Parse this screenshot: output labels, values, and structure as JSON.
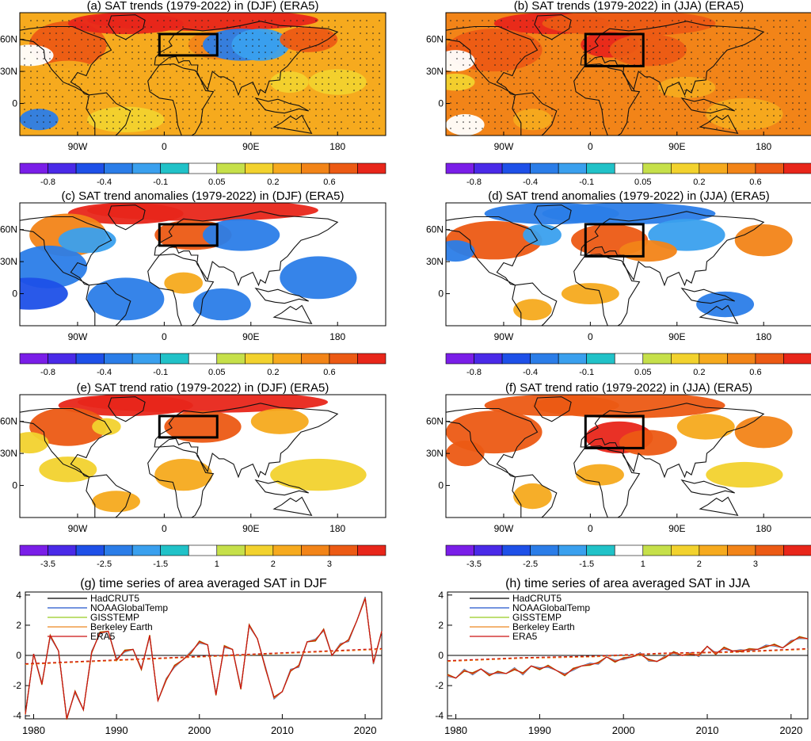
{
  "chart_data": [
    {
      "type": "heatmap",
      "id": "a",
      "title": "(a) SAT trends (1979-2022) in (DJF) (ERA5)",
      "region": "box 0-60E, 45-65N",
      "lon_ticks": [
        "90W",
        "0",
        "90E",
        "180"
      ],
      "lat_ticks": [
        "60N",
        "30N",
        "0"
      ],
      "colorbar_labels": [
        "-0.8",
        "-0.4",
        "-0.1",
        "0.05",
        "0.2",
        "0.6"
      ]
    },
    {
      "type": "heatmap",
      "id": "b",
      "title": "(b) SAT trends (1979-2022) in (JJA) (ERA5)",
      "region": "box 0-60E, 35-65N",
      "lon_ticks": [
        "90W",
        "0",
        "90E",
        "180"
      ],
      "lat_ticks": [
        "60N",
        "30N",
        "0"
      ],
      "colorbar_labels": [
        "-0.8",
        "-0.4",
        "-0.1",
        "0.05",
        "0.2",
        "0.6"
      ]
    },
    {
      "type": "heatmap",
      "id": "c",
      "title": "(c) SAT trend anomalies (1979-2022) in (DJF) (ERA5)",
      "lon_ticks": [
        "90W",
        "0",
        "90E",
        "180"
      ],
      "lat_ticks": [
        "60N",
        "30N",
        "0"
      ],
      "colorbar_labels": [
        "-0.8",
        "-0.4",
        "-0.1",
        "0.05",
        "0.2",
        "0.6"
      ]
    },
    {
      "type": "heatmap",
      "id": "d",
      "title": "(d) SAT trend anomalies (1979-2022) in (JJA) (ERA5)",
      "lon_ticks": [
        "90W",
        "0",
        "90E",
        "180"
      ],
      "lat_ticks": [
        "60N",
        "30N",
        "0"
      ],
      "colorbar_labels": [
        "-0.8",
        "-0.4",
        "-0.1",
        "0.05",
        "0.2",
        "0.6"
      ]
    },
    {
      "type": "heatmap",
      "id": "e",
      "title": "(e) SAT trend ratio (1979-2022) in (DJF) (ERA5)",
      "lon_ticks": [
        "90W",
        "0",
        "90E",
        "180"
      ],
      "lat_ticks": [
        "60N",
        "30N",
        "0"
      ],
      "colorbar_labels": [
        "-3.5",
        "-2.5",
        "-1.5",
        "1",
        "2",
        "3"
      ]
    },
    {
      "type": "heatmap",
      "id": "f",
      "title": "(f) SAT trend ratio (1979-2022) in (JJA) (ERA5)",
      "lon_ticks": [
        "90W",
        "0",
        "90E",
        "180"
      ],
      "lat_ticks": [
        "60N",
        "30N",
        "0"
      ],
      "colorbar_labels": [
        "-3.5",
        "-2.5",
        "-1.5",
        "1",
        "2",
        "3"
      ]
    },
    {
      "type": "line",
      "id": "g",
      "title": "(g) time series of area averaged SAT in DJF",
      "xlim": [
        1979,
        2022
      ],
      "ylim": [
        -4.2,
        4.2
      ],
      "xticks": [
        "1980",
        "1990",
        "2000",
        "2010",
        "2020"
      ],
      "yticks": [
        "4",
        "2",
        "0",
        "-2",
        "-4"
      ],
      "x": [
        1979,
        1980,
        1981,
        1982,
        1983,
        1984,
        1985,
        1986,
        1987,
        1988,
        1989,
        1990,
        1991,
        1992,
        1993,
        1994,
        1995,
        1996,
        1997,
        1998,
        1999,
        2000,
        2001,
        2002,
        2003,
        2004,
        2005,
        2006,
        2007,
        2008,
        2009,
        2010,
        2011,
        2012,
        2013,
        2014,
        2015,
        2016,
        2017,
        2018,
        2019,
        2020,
        2021,
        2022
      ],
      "values": [
        -3.9,
        0.1,
        -1.9,
        1.3,
        0.3,
        -4.2,
        -2.4,
        -3.6,
        0.2,
        1.5,
        1.6,
        -0.3,
        0.3,
        0.4,
        -0.9,
        1.3,
        -3.0,
        -1.6,
        -0.7,
        -0.3,
        0.2,
        0.9,
        0.7,
        -2.6,
        0.6,
        0.4,
        -2.2,
        2.0,
        1.1,
        -0.9,
        -2.8,
        -2.4,
        -1.0,
        -0.7,
        0.9,
        1.0,
        1.7,
        0.0,
        0.7,
        1.0,
        2.3,
        3.8,
        -0.5,
        1.6
      ],
      "trend": [
        -0.6,
        -0.5,
        -0.4,
        -0.3,
        -0.2,
        -0.1,
        0.0,
        0.1,
        0.2,
        0.3,
        0.4
      ],
      "series": [
        {
          "name": "HadCRUT5",
          "color": "#000000"
        },
        {
          "name": "NOAAGlobalTemp",
          "color": "#2255cc"
        },
        {
          "name": "GISSTEMP",
          "color": "#99cc22"
        },
        {
          "name": "Berkeley Earth",
          "color": "#ee8822"
        },
        {
          "name": "ERA5",
          "color": "#cc1111"
        }
      ]
    },
    {
      "type": "line",
      "id": "h",
      "title": "(h) time series of area averaged SAT in JJA",
      "xlim": [
        1979,
        2022
      ],
      "ylim": [
        -4.2,
        4.2
      ],
      "xticks": [
        "1980",
        "1990",
        "2000",
        "2010",
        "2020"
      ],
      "yticks": [
        "4",
        "2",
        "0",
        "-2",
        "-4"
      ],
      "x": [
        1979,
        1980,
        1981,
        1982,
        1983,
        1984,
        1985,
        1986,
        1987,
        1988,
        1989,
        1990,
        1991,
        1992,
        1993,
        1994,
        1995,
        1996,
        1997,
        1998,
        1999,
        2000,
        2001,
        2002,
        2003,
        2004,
        2005,
        2006,
        2007,
        2008,
        2009,
        2010,
        2011,
        2012,
        2013,
        2014,
        2015,
        2016,
        2017,
        2018,
        2019,
        2020,
        2021,
        2022
      ],
      "values": [
        -1.3,
        -1.5,
        -1.0,
        -1.2,
        -0.9,
        -1.3,
        -1.1,
        -1.2,
        -0.9,
        -1.2,
        -0.7,
        -0.9,
        -0.7,
        -1.0,
        -1.3,
        -0.9,
        -0.7,
        -0.6,
        -0.5,
        -0.1,
        -0.4,
        -0.2,
        -0.1,
        0.1,
        -0.3,
        -0.4,
        -0.1,
        0.2,
        0.0,
        0.1,
        0.0,
        0.6,
        0.1,
        0.5,
        0.3,
        0.3,
        0.4,
        0.4,
        0.6,
        0.7,
        0.5,
        0.9,
        1.2,
        1.1
      ],
      "trend": [
        -0.4,
        -0.3,
        -0.2,
        -0.15,
        -0.1,
        0.0,
        0.1,
        0.15,
        0.2,
        0.3,
        0.4
      ],
      "series": [
        {
          "name": "HadCRUT5",
          "color": "#000000"
        },
        {
          "name": "NOAAGlobalTemp",
          "color": "#2255cc"
        },
        {
          "name": "GISSTEMP",
          "color": "#99cc22"
        },
        {
          "name": "Berkeley Earth",
          "color": "#ee8822"
        },
        {
          "name": "ERA5",
          "color": "#cc1111"
        }
      ]
    }
  ],
  "palette": [
    "#7a1ee8",
    "#4a2ae8",
    "#1e50e8",
    "#2b7de8",
    "#3aa0ee",
    "#21c2c8",
    "#ffffff",
    "#c6e04a",
    "#f2d22e",
    "#f6aa1e",
    "#f28418",
    "#ec5a14",
    "#e8261a"
  ]
}
